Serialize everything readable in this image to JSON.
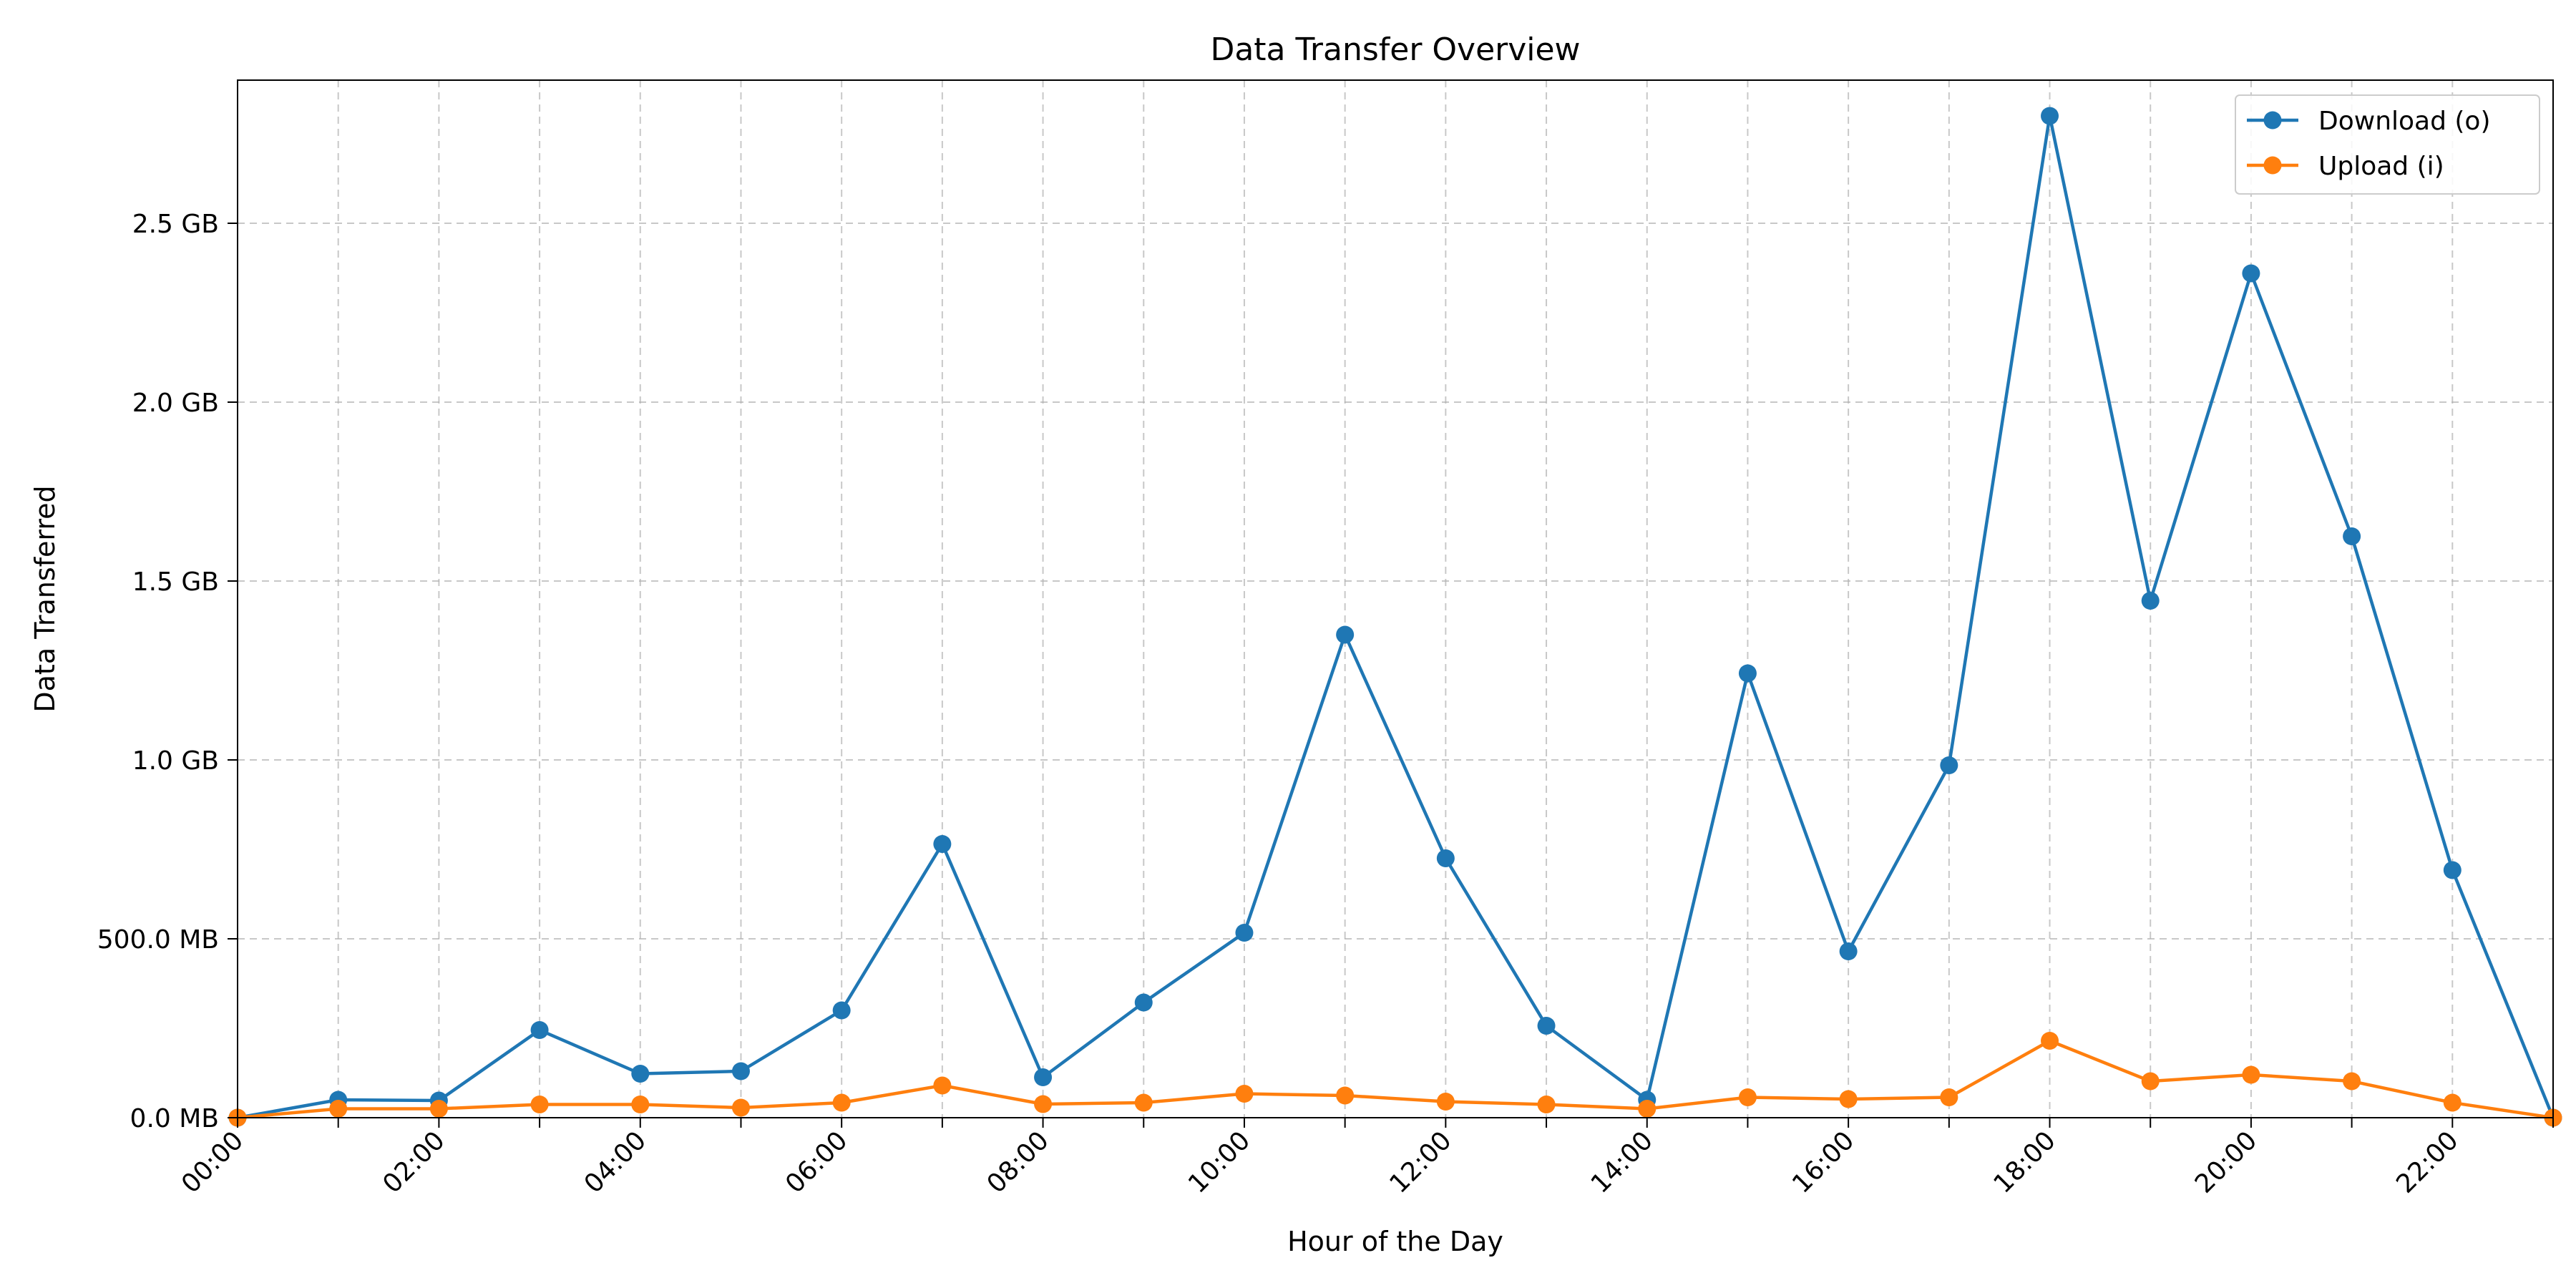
{
  "chart_data": {
    "type": "line",
    "title": "Data Transfer Overview",
    "xlabel": "Hour of the Day",
    "ylabel": "Data Transferred",
    "x": [
      "00:00",
      "01:00",
      "02:00",
      "03:00",
      "04:00",
      "05:00",
      "06:00",
      "07:00",
      "08:00",
      "09:00",
      "10:00",
      "11:00",
      "12:00",
      "13:00",
      "14:00",
      "15:00",
      "16:00",
      "17:00",
      "18:00",
      "19:00",
      "20:00",
      "21:00",
      "22:00",
      "23:00"
    ],
    "xticks": [
      "00:00",
      "02:00",
      "04:00",
      "06:00",
      "08:00",
      "10:00",
      "12:00",
      "14:00",
      "16:00",
      "18:00",
      "20:00",
      "22:00"
    ],
    "y_unit": "MB",
    "ylim": [
      0,
      2900
    ],
    "yticks": [
      {
        "value": 0,
        "label": "0.0 MB"
      },
      {
        "value": 500,
        "label": "500.0 MB"
      },
      {
        "value": 1000,
        "label": "1.0 GB"
      },
      {
        "value": 1500,
        "label": "1.5 GB"
      },
      {
        "value": 2000,
        "label": "2.0 GB"
      },
      {
        "value": 2500,
        "label": "2.5 GB"
      }
    ],
    "grid": true,
    "legend_position": "top-right",
    "series": [
      {
        "name": "Download (o)",
        "color": "#1f77b4",
        "values": [
          0,
          50,
          48,
          245,
          123,
          130,
          300,
          765,
          113,
          322,
          517,
          1350,
          725,
          257,
          50,
          1242,
          465,
          985,
          2800,
          1445,
          2360,
          1625,
          692,
          0
        ]
      },
      {
        "name": "Upload (i)",
        "color": "#ff7f0e",
        "values": [
          0,
          25,
          25,
          37,
          37,
          28,
          42,
          90,
          38,
          42,
          67,
          62,
          45,
          37,
          25,
          57,
          52,
          57,
          215,
          102,
          120,
          102,
          42,
          0
        ]
      }
    ]
  }
}
